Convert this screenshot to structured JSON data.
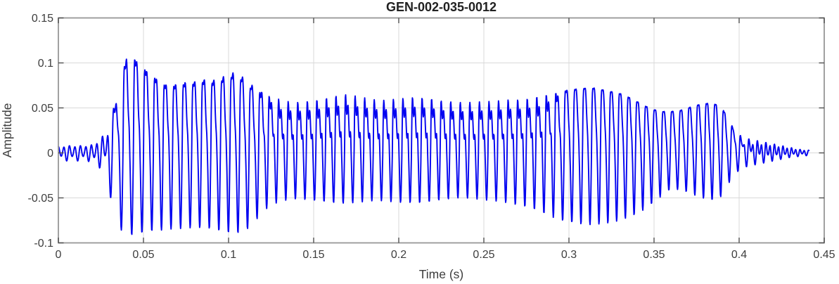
{
  "chart_data": {
    "type": "line",
    "title": "GEN-002-035-0012",
    "xlabel": "Time (s)",
    "ylabel": "Amplitude",
    "xlim": [
      0,
      0.45
    ],
    "ylim": [
      -0.1,
      0.15
    ],
    "grid": true,
    "legend": null,
    "xticks": {
      "values": [
        0,
        0.05,
        0.1,
        0.15,
        0.2,
        0.25,
        0.3,
        0.35,
        0.4,
        0.45
      ],
      "labels": [
        "0",
        "0.05",
        "0.1",
        "0.15",
        "0.2",
        "0.25",
        "0.3",
        "0.35",
        "0.4",
        "0.45"
      ]
    },
    "yticks": {
      "values": [
        -0.1,
        -0.05,
        0,
        0.05,
        0.1,
        0.15
      ],
      "labels": [
        "-0.1",
        "-0.05",
        "0",
        "0.05",
        "0.1",
        "0.15"
      ]
    },
    "style": {
      "line_color": "#0404f0",
      "grid_color": "#d9d9d9",
      "box_color": "#979797",
      "tick_color": "#4f4f4f",
      "label_color": "#3d3d3d",
      "title_color": "#212121",
      "background": "#ffffff"
    },
    "signal": {
      "description": "speech-like waveform, ~180 Hz fundamental, duration ~0.44 s",
      "duration_s": 0.441,
      "f0_keyframes": [
        [
          0,
          155
        ],
        [
          0.03,
          155
        ],
        [
          0.06,
          178
        ],
        [
          0.28,
          178
        ],
        [
          0.33,
          195
        ],
        [
          0.441,
          200
        ]
      ],
      "harmonic_phases": [
        0,
        1.1,
        2.3
      ],
      "harmonic_weight_keyframes": [
        [
          0.0,
          0.3,
          1.0,
          0.1
        ],
        [
          0.024,
          0.3,
          1.0,
          0.1
        ],
        [
          0.034,
          1.0,
          0.45,
          0.2
        ],
        [
          0.115,
          1.0,
          0.4,
          0.18
        ],
        [
          0.13,
          1.0,
          0.6,
          0.35
        ],
        [
          0.285,
          1.0,
          0.6,
          0.35
        ],
        [
          0.3,
          1.0,
          0.4,
          0.15
        ],
        [
          0.395,
          1.0,
          0.4,
          0.15
        ],
        [
          0.415,
          0.5,
          0.9,
          0.1
        ],
        [
          0.441,
          0.45,
          1.0,
          0.1
        ]
      ],
      "envelope_t_pos_neg": [
        [
          0.0,
          0.007,
          0.008
        ],
        [
          0.005,
          0.008,
          0.009
        ],
        [
          0.01,
          0.008,
          0.009
        ],
        [
          0.015,
          0.008,
          0.009
        ],
        [
          0.02,
          0.009,
          0.01
        ],
        [
          0.025,
          0.015,
          0.018
        ],
        [
          0.03,
          0.035,
          0.045
        ],
        [
          0.035,
          0.065,
          0.082
        ],
        [
          0.04,
          0.106,
          0.092
        ],
        [
          0.045,
          0.104,
          0.091
        ],
        [
          0.05,
          0.094,
          0.089
        ],
        [
          0.055,
          0.086,
          0.087
        ],
        [
          0.06,
          0.078,
          0.086
        ],
        [
          0.065,
          0.074,
          0.085
        ],
        [
          0.07,
          0.076,
          0.085
        ],
        [
          0.075,
          0.078,
          0.084
        ],
        [
          0.08,
          0.079,
          0.083
        ],
        [
          0.085,
          0.081,
          0.084
        ],
        [
          0.09,
          0.08,
          0.085
        ],
        [
          0.095,
          0.083,
          0.087
        ],
        [
          0.1,
          0.087,
          0.089
        ],
        [
          0.105,
          0.09,
          0.09
        ],
        [
          0.11,
          0.081,
          0.087
        ],
        [
          0.115,
          0.073,
          0.077
        ],
        [
          0.12,
          0.067,
          0.065
        ],
        [
          0.125,
          0.062,
          0.058
        ],
        [
          0.13,
          0.059,
          0.054
        ],
        [
          0.135,
          0.057,
          0.052
        ],
        [
          0.14,
          0.056,
          0.051
        ],
        [
          0.145,
          0.057,
          0.052
        ],
        [
          0.15,
          0.058,
          0.053
        ],
        [
          0.155,
          0.06,
          0.054
        ],
        [
          0.16,
          0.062,
          0.055
        ],
        [
          0.165,
          0.064,
          0.056
        ],
        [
          0.17,
          0.065,
          0.056
        ],
        [
          0.175,
          0.063,
          0.055
        ],
        [
          0.18,
          0.061,
          0.054
        ],
        [
          0.185,
          0.059,
          0.053
        ],
        [
          0.19,
          0.058,
          0.053
        ],
        [
          0.195,
          0.059,
          0.054
        ],
        [
          0.2,
          0.06,
          0.055
        ],
        [
          0.205,
          0.061,
          0.055
        ],
        [
          0.21,
          0.062,
          0.056
        ],
        [
          0.215,
          0.061,
          0.055
        ],
        [
          0.22,
          0.06,
          0.054
        ],
        [
          0.225,
          0.058,
          0.052
        ],
        [
          0.23,
          0.057,
          0.051
        ],
        [
          0.235,
          0.056,
          0.05
        ],
        [
          0.24,
          0.056,
          0.05
        ],
        [
          0.245,
          0.056,
          0.051
        ],
        [
          0.25,
          0.057,
          0.052
        ],
        [
          0.255,
          0.057,
          0.053
        ],
        [
          0.26,
          0.058,
          0.054
        ],
        [
          0.265,
          0.059,
          0.056
        ],
        [
          0.27,
          0.059,
          0.058
        ],
        [
          0.275,
          0.06,
          0.06
        ],
        [
          0.28,
          0.062,
          0.063
        ],
        [
          0.285,
          0.064,
          0.067
        ],
        [
          0.29,
          0.066,
          0.071
        ],
        [
          0.295,
          0.068,
          0.075
        ],
        [
          0.3,
          0.07,
          0.077
        ],
        [
          0.305,
          0.071,
          0.079
        ],
        [
          0.31,
          0.072,
          0.08
        ],
        [
          0.315,
          0.072,
          0.08
        ],
        [
          0.32,
          0.07,
          0.079
        ],
        [
          0.325,
          0.068,
          0.078
        ],
        [
          0.33,
          0.066,
          0.075
        ],
        [
          0.335,
          0.062,
          0.072
        ],
        [
          0.34,
          0.057,
          0.068
        ],
        [
          0.345,
          0.052,
          0.062
        ],
        [
          0.35,
          0.048,
          0.055
        ],
        [
          0.355,
          0.046,
          0.047
        ],
        [
          0.36,
          0.046,
          0.04
        ],
        [
          0.365,
          0.047,
          0.041
        ],
        [
          0.37,
          0.05,
          0.044
        ],
        [
          0.375,
          0.053,
          0.048
        ],
        [
          0.38,
          0.055,
          0.051
        ],
        [
          0.385,
          0.055,
          0.053
        ],
        [
          0.39,
          0.05,
          0.048
        ],
        [
          0.395,
          0.032,
          0.03
        ],
        [
          0.4,
          0.02,
          0.019
        ],
        [
          0.405,
          0.016,
          0.015
        ],
        [
          0.41,
          0.014,
          0.013
        ],
        [
          0.415,
          0.012,
          0.011
        ],
        [
          0.42,
          0.01,
          0.009
        ],
        [
          0.425,
          0.008,
          0.007
        ],
        [
          0.43,
          0.006,
          0.005
        ],
        [
          0.435,
          0.004,
          0.004
        ],
        [
          0.44,
          0.003,
          0.003
        ]
      ]
    }
  }
}
